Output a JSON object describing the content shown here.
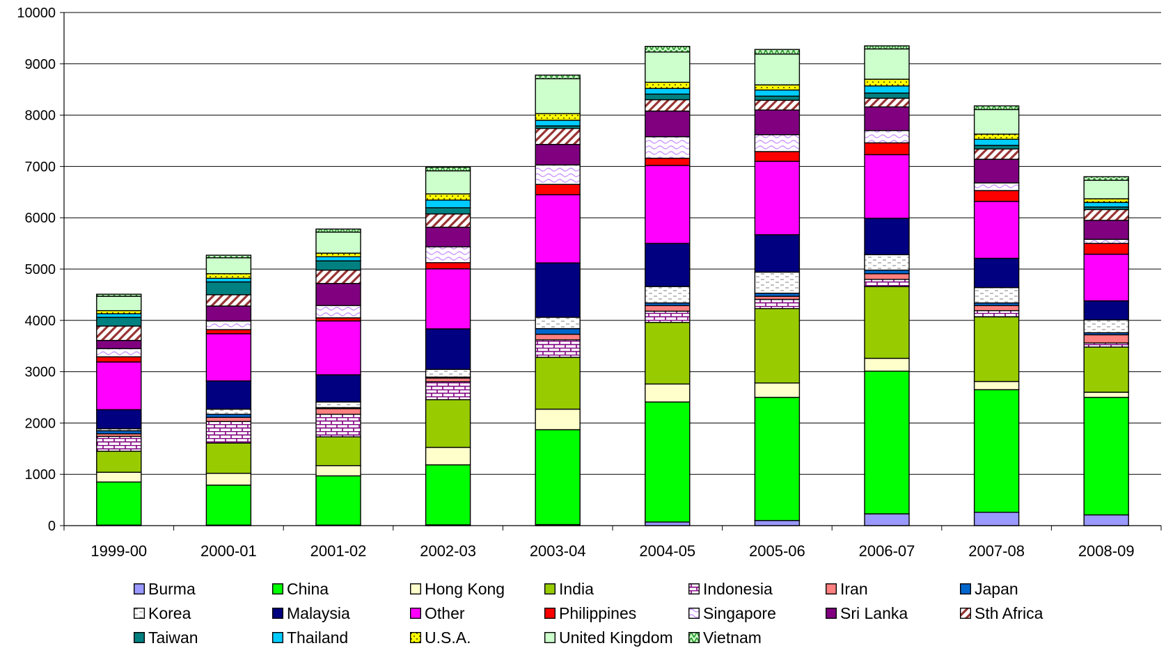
{
  "chart_data": {
    "type": "bar",
    "stacked": true,
    "title": "",
    "xlabel": "",
    "ylabel": "",
    "ylim": [
      0,
      10000
    ],
    "yticks": [
      0,
      1000,
      2000,
      3000,
      4000,
      5000,
      6000,
      7000,
      8000,
      9000,
      10000
    ],
    "grid": true,
    "legend_position": "bottom",
    "categories": [
      "1999-00",
      "2000-01",
      "2001-02",
      "2002-03",
      "2003-04",
      "2004-05",
      "2005-06",
      "2006-07",
      "2007-08",
      "2008-09"
    ],
    "series": [
      {
        "name": "Burma",
        "color": "#9999ff",
        "pattern": "solid",
        "values": [
          10,
          10,
          10,
          15,
          20,
          70,
          100,
          230,
          260,
          210
        ]
      },
      {
        "name": "China",
        "color": "#00ff00",
        "pattern": "solid",
        "values": [
          840,
          780,
          960,
          1170,
          1850,
          2340,
          2400,
          2780,
          2390,
          2290
        ]
      },
      {
        "name": "Hong Kong",
        "color": "#ffffcc",
        "pattern": "solid",
        "values": [
          190,
          230,
          200,
          340,
          400,
          350,
          280,
          250,
          160,
          100
        ]
      },
      {
        "name": "India",
        "color": "#99cc00",
        "pattern": "solid",
        "values": [
          410,
          590,
          560,
          930,
          1010,
          1200,
          1450,
          1400,
          1260,
          880
        ]
      },
      {
        "name": "Indonesia",
        "color": "#ffffff",
        "pattern": "bricks",
        "values": [
          290,
          420,
          440,
          350,
          340,
          220,
          180,
          140,
          120,
          80
        ]
      },
      {
        "name": "Iran",
        "color": "#ff8080",
        "pattern": "solid",
        "values": [
          50,
          80,
          110,
          70,
          110,
          110,
          60,
          110,
          100,
          160
        ]
      },
      {
        "name": "Japan",
        "color": "#0066cc",
        "pattern": "solid",
        "values": [
          60,
          60,
          20,
          20,
          110,
          50,
          60,
          70,
          50,
          40
        ]
      },
      {
        "name": "Korea",
        "color": "#ffffff",
        "pattern": "dashes",
        "values": [
          40,
          100,
          110,
          150,
          220,
          320,
          410,
          300,
          300,
          250
        ]
      },
      {
        "name": "Malaysia",
        "color": "#000080",
        "pattern": "solid",
        "values": [
          370,
          550,
          530,
          790,
          1060,
          840,
          730,
          710,
          570,
          370
        ]
      },
      {
        "name": "Other",
        "color": "#ff00ff",
        "pattern": "solid",
        "values": [
          930,
          920,
          1050,
          1170,
          1330,
          1520,
          1430,
          1240,
          1110,
          910
        ]
      },
      {
        "name": "Philippines",
        "color": "#ff0000",
        "pattern": "solid",
        "values": [
          100,
          80,
          60,
          120,
          200,
          140,
          190,
          230,
          210,
          210
        ]
      },
      {
        "name": "Singapore",
        "color": "#ffffff",
        "pattern": "waves",
        "values": [
          160,
          170,
          240,
          310,
          380,
          420,
          330,
          240,
          150,
          80
        ]
      },
      {
        "name": "Sri Lanka",
        "color": "#800080",
        "pattern": "solid",
        "values": [
          160,
          290,
          430,
          380,
          400,
          500,
          480,
          460,
          460,
          370
        ]
      },
      {
        "name": "Sth Africa",
        "color": "#ffffff",
        "pattern": "stripes",
        "values": [
          280,
          220,
          260,
          260,
          310,
          220,
          190,
          170,
          200,
          210
        ]
      },
      {
        "name": "Taiwan",
        "color": "#008080",
        "pattern": "solid",
        "values": [
          170,
          250,
          180,
          120,
          50,
          110,
          80,
          100,
          70,
          50
        ]
      },
      {
        "name": "Thailand",
        "color": "#00ccff",
        "pattern": "solid",
        "values": [
          70,
          70,
          80,
          150,
          110,
          110,
          120,
          140,
          120,
          90
        ]
      },
      {
        "name": "U.S.A.",
        "color": "#ffff00",
        "pattern": "dots",
        "values": [
          60,
          90,
          70,
          120,
          130,
          120,
          100,
          130,
          100,
          70
        ]
      },
      {
        "name": "United Kingdom",
        "color": "#ccffcc",
        "pattern": "solid",
        "values": [
          280,
          310,
          410,
          450,
          680,
          590,
          600,
          590,
          480,
          360
        ]
      },
      {
        "name": "Vietnam",
        "color": "#339933",
        "pattern": "zigzag",
        "values": [
          40,
          50,
          60,
          70,
          70,
          110,
          90,
          60,
          70,
          70
        ]
      }
    ]
  }
}
